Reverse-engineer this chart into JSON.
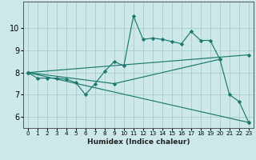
{
  "xlabel": "Humidex (Indice chaleur)",
  "background_color": "#cce8e8",
  "grid_color": "#aacccc",
  "line_color": "#1a7a6e",
  "xlim": [
    -0.5,
    23.5
  ],
  "ylim": [
    5.5,
    11.2
  ],
  "yticks": [
    6,
    7,
    8,
    9,
    10
  ],
  "ytick_labels": [
    "6",
    "7",
    "8",
    "9",
    "10"
  ],
  "xticks": [
    0,
    1,
    2,
    3,
    4,
    5,
    6,
    7,
    8,
    9,
    10,
    11,
    12,
    13,
    14,
    15,
    16,
    17,
    18,
    19,
    20,
    21,
    22,
    23
  ],
  "series": [
    {
      "x": [
        0,
        1,
        2,
        3,
        4,
        5,
        6,
        7,
        8,
        9,
        10,
        11,
        12,
        13,
        14,
        15,
        16,
        17,
        18,
        19,
        20,
        21,
        22,
        23
      ],
      "y": [
        8.0,
        7.75,
        7.75,
        7.75,
        7.7,
        7.55,
        7.0,
        7.5,
        8.05,
        8.5,
        8.3,
        10.55,
        9.5,
        9.55,
        9.5,
        9.4,
        9.3,
        9.85,
        9.45,
        9.45,
        8.6,
        7.0,
        6.7,
        5.75
      ]
    },
    {
      "x": [
        0,
        23
      ],
      "y": [
        8.0,
        5.75
      ]
    },
    {
      "x": [
        0,
        23
      ],
      "y": [
        8.0,
        8.8
      ]
    },
    {
      "x": [
        0,
        9,
        20
      ],
      "y": [
        8.0,
        7.5,
        8.6
      ]
    }
  ]
}
